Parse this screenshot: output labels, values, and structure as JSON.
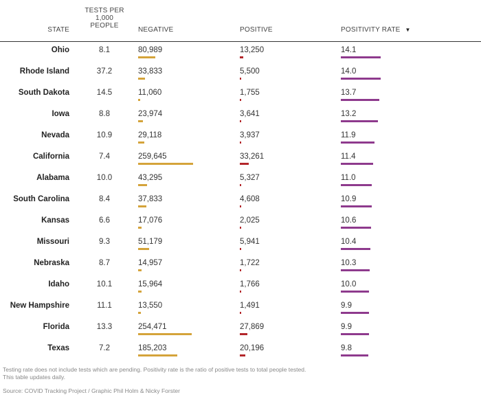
{
  "columns": {
    "state": "STATE",
    "tests_lines": [
      "TESTS PER",
      "1,000",
      "PEOPLE"
    ],
    "negative": "NEGATIVE",
    "positive": "POSITIVE",
    "rate": "POSITIVITY RATE",
    "sort_icon": "sort-descending-triangle"
  },
  "colors": {
    "negative_bar": "#d4a33a",
    "positive_bar": "#b3262a",
    "rate_bar": "#8e3a8d",
    "rule": "#333333"
  },
  "chart_data": {
    "type": "table",
    "sorted_by": "positivity rate, descending",
    "rows": [
      {
        "state": "Ohio",
        "tests": "8.1",
        "negative": "80,989",
        "positive": "13,250",
        "rate": "14.1"
      },
      {
        "state": "Rhode Island",
        "tests": "37.2",
        "negative": "33,833",
        "positive": "5,500",
        "rate": "14.0"
      },
      {
        "state": "South Dakota",
        "tests": "14.5",
        "negative": "11,060",
        "positive": "1,755",
        "rate": "13.7"
      },
      {
        "state": "Iowa",
        "tests": "8.8",
        "negative": "23,974",
        "positive": "3,641",
        "rate": "13.2"
      },
      {
        "state": "Nevada",
        "tests": "10.9",
        "negative": "29,118",
        "positive": "3,937",
        "rate": "11.9"
      },
      {
        "state": "California",
        "tests": "7.4",
        "negative": "259,645",
        "positive": "33,261",
        "rate": "11.4"
      },
      {
        "state": "Alabama",
        "tests": "10.0",
        "negative": "43,295",
        "positive": "5,327",
        "rate": "11.0"
      },
      {
        "state": "South Carolina",
        "tests": "8.4",
        "negative": "37,833",
        "positive": "4,608",
        "rate": "10.9"
      },
      {
        "state": "Kansas",
        "tests": "6.6",
        "negative": "17,076",
        "positive": "2,025",
        "rate": "10.6"
      },
      {
        "state": "Missouri",
        "tests": "9.3",
        "negative": "51,179",
        "positive": "5,941",
        "rate": "10.4"
      },
      {
        "state": "Nebraska",
        "tests": "8.7",
        "negative": "14,957",
        "positive": "1,722",
        "rate": "10.3"
      },
      {
        "state": "Idaho",
        "tests": "10.1",
        "negative": "15,964",
        "positive": "1,766",
        "rate": "10.0"
      },
      {
        "state": "New Hampshire",
        "tests": "11.1",
        "negative": "13,550",
        "positive": "1,491",
        "rate": "9.9"
      },
      {
        "state": "Florida",
        "tests": "13.3",
        "negative": "254,471",
        "positive": "27,869",
        "rate": "9.9"
      },
      {
        "state": "Texas",
        "tests": "7.2",
        "negative": "185,203",
        "positive": "20,196",
        "rate": "9.8"
      }
    ]
  },
  "footer": {
    "note_line1": "Testing rate does not include tests which are pending. Positivity rate is the ratio of positive tests to total people tested.",
    "note_line2": "This table updates daily.",
    "source": "Source: COVID Tracking Project / Graphic Phil Holm & Nicky Forster"
  }
}
